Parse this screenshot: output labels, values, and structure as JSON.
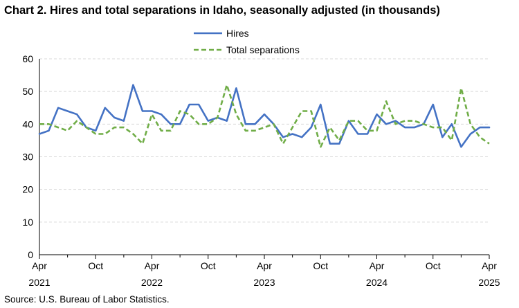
{
  "page": {
    "title": "Chart 2. Hires and total separations in Idaho, seasonally adjusted (in thousands)",
    "source": "Source: U.S. Bureau of Labor Statistics."
  },
  "chart_data": {
    "type": "line",
    "title": "Chart 2. Hires and total separations in Idaho, seasonally adjusted (in thousands)",
    "xlabel": "",
    "ylabel": "",
    "ylim": [
      0,
      60
    ],
    "yticks": [
      0,
      10,
      20,
      30,
      40,
      50,
      60
    ],
    "grid": true,
    "legend_position": "top-center",
    "x_start": "2021-04",
    "x_count": 49,
    "x_ticks": [
      {
        "index": 0,
        "month": "Apr",
        "year": "2021"
      },
      {
        "index": 6,
        "month": "Oct",
        "year": ""
      },
      {
        "index": 12,
        "month": "Apr",
        "year": "2022"
      },
      {
        "index": 18,
        "month": "Oct",
        "year": ""
      },
      {
        "index": 24,
        "month": "Apr",
        "year": "2023"
      },
      {
        "index": 30,
        "month": "Oct",
        "year": ""
      },
      {
        "index": 36,
        "month": "Apr",
        "year": "2024"
      },
      {
        "index": 42,
        "month": "Oct",
        "year": ""
      },
      {
        "index": 48,
        "month": "Apr",
        "year": "2025"
      }
    ],
    "series": [
      {
        "name": "Hires",
        "color": "#4472C4",
        "dash": "solid",
        "values": [
          37,
          38,
          45,
          44,
          43,
          39,
          38,
          45,
          42,
          41,
          52,
          44,
          44,
          43,
          40,
          40,
          46,
          46,
          41,
          42,
          41,
          51,
          40,
          40,
          43,
          40,
          36,
          37,
          36,
          39,
          46,
          34,
          34,
          41,
          37,
          37,
          43,
          40,
          41,
          39,
          39,
          40,
          46,
          36,
          40,
          33,
          37,
          39,
          39
        ]
      },
      {
        "name": "Total separations",
        "color": "#70AD47",
        "dash": "dashed",
        "values": [
          40,
          40,
          39,
          38,
          41,
          39,
          37,
          37,
          39,
          39,
          37,
          34,
          43,
          38,
          38,
          44,
          43,
          40,
          40,
          42,
          52,
          43,
          38,
          38,
          39,
          40,
          34,
          39,
          44,
          44,
          33,
          39,
          35,
          41,
          41,
          38,
          38,
          47,
          40,
          41,
          41,
          40,
          39,
          39,
          35,
          51,
          40,
          36,
          34
        ]
      }
    ]
  }
}
